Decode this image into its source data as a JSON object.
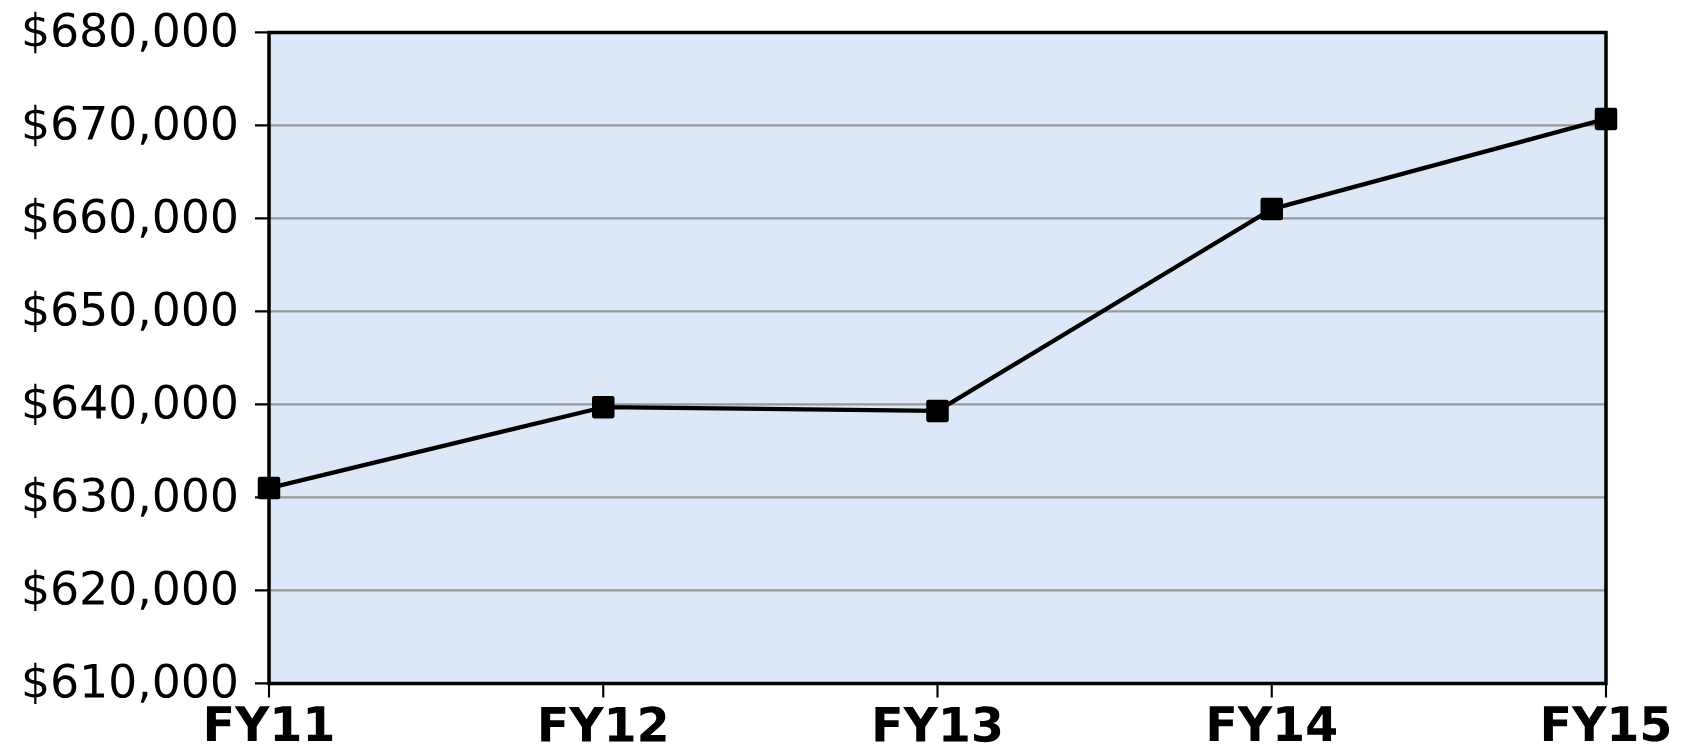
{
  "chart_data": {
    "type": "line",
    "categories": [
      "FY11",
      "FY12",
      "FY13",
      "FY14",
      "FY15"
    ],
    "series": [
      {
        "color": "#000000",
        "values": [
          631000,
          639700,
          639300,
          661000,
          670700
        ]
      }
    ],
    "ylim": [
      610000,
      680000
    ],
    "yticks": [
      {
        "value": 610000,
        "label": "$610,000"
      },
      {
        "value": 620000,
        "label": "$620,000"
      },
      {
        "value": 630000,
        "label": "$630,000"
      },
      {
        "value": 640000,
        "label": "$640,000"
      },
      {
        "value": 650000,
        "label": "$650,000"
      },
      {
        "value": 660000,
        "label": "$660,000"
      },
      {
        "value": 670000,
        "label": "$670,000"
      },
      {
        "value": 680000,
        "label": "$680,000"
      }
    ],
    "grid": "y",
    "marker": "square",
    "line_style": "solid"
  }
}
